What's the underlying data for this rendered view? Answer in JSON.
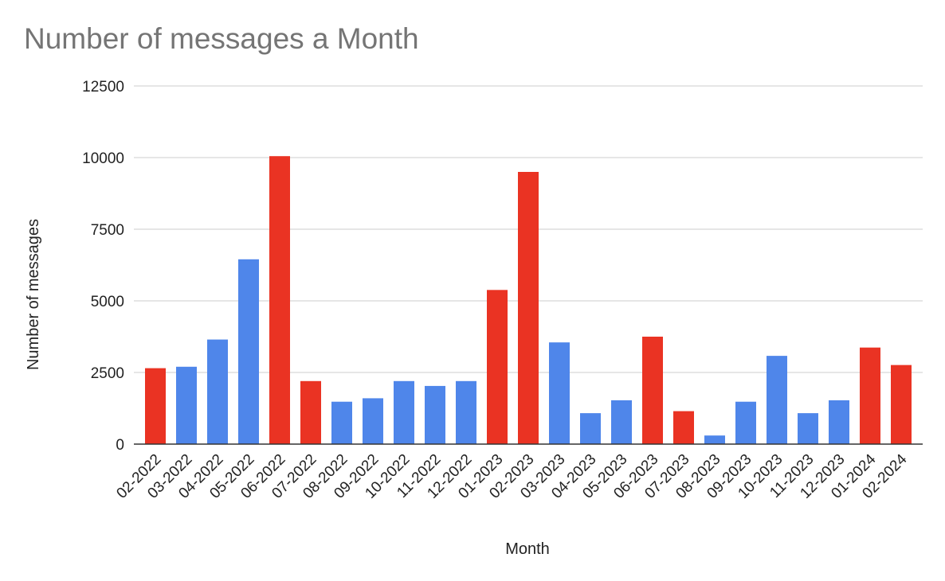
{
  "chart_data": {
    "type": "bar",
    "title": "Number of messages a Month",
    "xlabel": "Month",
    "ylabel": "Number of messages",
    "ylim": [
      0,
      12500
    ],
    "yticks": [
      "0",
      "2500",
      "5000",
      "7500",
      "10000",
      "12500"
    ],
    "grid": true,
    "legend": "none",
    "categories": [
      "02-2022",
      "03-2022",
      "04-2022",
      "05-2022",
      "06-2022",
      "07-2022",
      "08-2022",
      "09-2022",
      "10-2022",
      "11-2022",
      "12-2022",
      "01-2023",
      "02-2023",
      "03-2023",
      "04-2023",
      "05-2023",
      "06-2023",
      "07-2023",
      "08-2023",
      "09-2023",
      "10-2023",
      "11-2023",
      "12-2023",
      "01-2024",
      "02-2024"
    ],
    "values": [
      2650,
      2700,
      3650,
      6450,
      10050,
      2200,
      1480,
      1600,
      2200,
      2030,
      2200,
      5380,
      9500,
      3550,
      1080,
      1530,
      3750,
      1150,
      300,
      1480,
      3080,
      1080,
      1530,
      3370,
      2760
    ],
    "colors": [
      "#ea3323",
      "#4f86ea",
      "#4f86ea",
      "#4f86ea",
      "#ea3323",
      "#ea3323",
      "#4f86ea",
      "#4f86ea",
      "#4f86ea",
      "#4f86ea",
      "#4f86ea",
      "#ea3323",
      "#ea3323",
      "#4f86ea",
      "#4f86ea",
      "#4f86ea",
      "#ea3323",
      "#ea3323",
      "#4f86ea",
      "#4f86ea",
      "#4f86ea",
      "#4f86ea",
      "#4f86ea",
      "#ea3323",
      "#ea3323"
    ]
  }
}
